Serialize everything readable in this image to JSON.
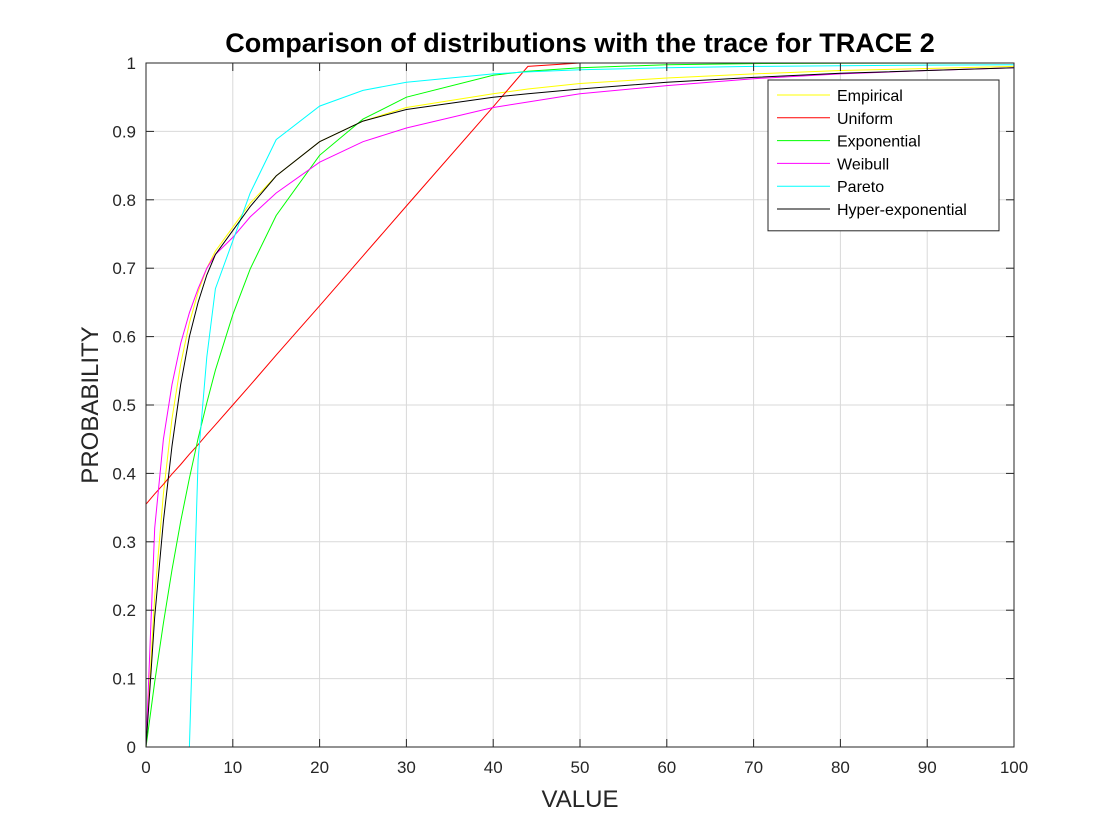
{
  "chart_data": {
    "type": "line",
    "title": "Comparison of distributions with the trace for TRACE 2",
    "xlabel": "VALUE",
    "ylabel": "PROBABILITY",
    "xlim": [
      0,
      100
    ],
    "ylim": [
      0,
      1
    ],
    "xticks": [
      0,
      10,
      20,
      30,
      40,
      50,
      60,
      70,
      80,
      90,
      100
    ],
    "yticks": [
      0,
      0.1,
      0.2,
      0.3,
      0.4,
      0.5,
      0.6,
      0.7,
      0.8,
      0.9,
      1
    ],
    "grid": true,
    "legend_position": "top-right",
    "x": [
      0,
      1,
      2,
      3,
      4,
      5,
      6,
      7,
      8,
      10,
      12,
      15,
      20,
      25,
      30,
      40,
      44,
      50,
      60,
      70,
      80,
      90,
      100
    ],
    "series": [
      {
        "name": "Empirical",
        "color": "#ffff00",
        "values": [
          0,
          0.22,
          0.37,
          0.48,
          0.56,
          0.62,
          0.665,
          0.7,
          0.725,
          0.76,
          0.795,
          0.835,
          0.885,
          0.915,
          0.935,
          0.955,
          0.962,
          0.97,
          0.978,
          0.984,
          0.989,
          0.992,
          0.995
        ]
      },
      {
        "name": "Uniform",
        "color": "#ff0000",
        "values": [
          0.355,
          0.37,
          0.384,
          0.399,
          0.413,
          0.428,
          0.442,
          0.457,
          0.471,
          0.5,
          0.529,
          0.573,
          0.645,
          0.718,
          0.791,
          0.936,
          0.995,
          1,
          1,
          1,
          1,
          1,
          1
        ]
      },
      {
        "name": "Exponential",
        "color": "#00ff00",
        "values": [
          0,
          0.095,
          0.181,
          0.259,
          0.33,
          0.393,
          0.451,
          0.503,
          0.551,
          0.632,
          0.699,
          0.777,
          0.865,
          0.918,
          0.95,
          0.982,
          0.988,
          0.993,
          0.9975,
          0.9991,
          0.9997,
          0.9999,
          1
        ]
      },
      {
        "name": "Weibull",
        "color": "#ff00ff",
        "values": [
          0,
          0.32,
          0.45,
          0.53,
          0.59,
          0.635,
          0.67,
          0.7,
          0.72,
          0.745,
          0.775,
          0.81,
          0.855,
          0.885,
          0.905,
          0.935,
          0.943,
          0.955,
          0.967,
          0.977,
          0.984,
          0.989,
          0.993
        ]
      },
      {
        "name": "Pareto",
        "color": "#00ffff",
        "values": [
          0,
          0,
          0,
          0,
          0,
          0,
          0.42,
          0.57,
          0.67,
          0.74,
          0.81,
          0.888,
          0.937,
          0.96,
          0.972,
          0.984,
          0.987,
          0.99,
          0.993,
          0.995,
          0.996,
          0.997,
          0.9975
        ]
      },
      {
        "name": "Hyper-exponential",
        "color": "#000000",
        "values": [
          0,
          0.19,
          0.33,
          0.44,
          0.53,
          0.6,
          0.65,
          0.69,
          0.72,
          0.755,
          0.79,
          0.835,
          0.885,
          0.915,
          0.932,
          0.95,
          0.955,
          0.962,
          0.972,
          0.979,
          0.985,
          0.989,
          0.993
        ]
      }
    ]
  }
}
